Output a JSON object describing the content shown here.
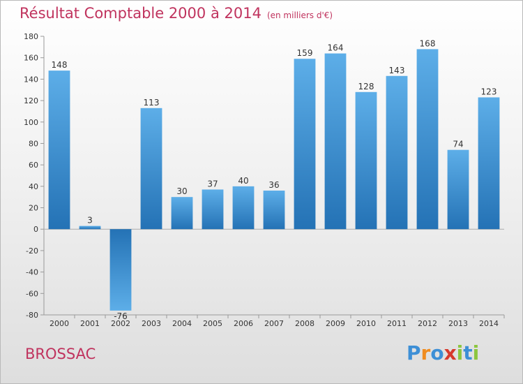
{
  "title": "Résultat Comptable 2000 à 2014",
  "subtitle": "(en milliers d'€)",
  "commune": "BROSSAC",
  "logo": {
    "text": "Proxiti",
    "letters": [
      "P",
      "r",
      "o",
      "x",
      "i",
      "t",
      "i"
    ],
    "colors": [
      "#3d8fd6",
      "#f08c1f",
      "#3d8fd6",
      "#d6392c",
      "#8cc63f",
      "#3d8fd6",
      "#8cc63f"
    ]
  },
  "colors": {
    "bar_top": "#5daee8",
    "bar_bottom": "#2472b5",
    "title": "#c0335e"
  },
  "chart_data": {
    "type": "bar",
    "categories": [
      "2000",
      "2001",
      "2002",
      "2003",
      "2004",
      "2005",
      "2006",
      "2007",
      "2008",
      "2009",
      "2010",
      "2011",
      "2012",
      "2013",
      "2014"
    ],
    "values": [
      148,
      3,
      -76,
      113,
      30,
      37,
      40,
      36,
      159,
      164,
      128,
      143,
      168,
      74,
      123
    ],
    "ylim": [
      -80,
      180
    ],
    "yticks": [
      180,
      160,
      140,
      120,
      100,
      80,
      60,
      40,
      20,
      0,
      -20,
      -40,
      -60,
      -80
    ],
    "grid": false
  }
}
